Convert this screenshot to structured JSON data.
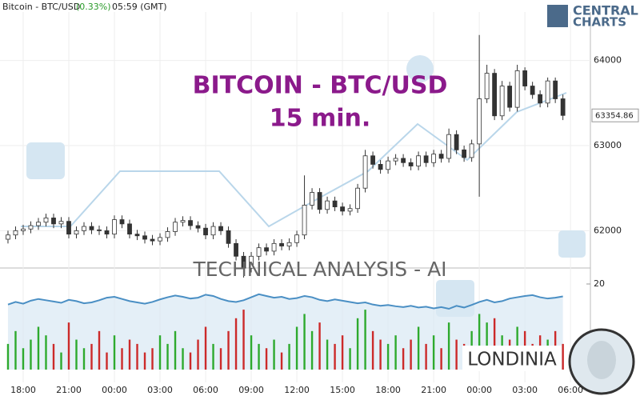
{
  "header": {
    "instrument": "Bitcoin - BTC/USD",
    "change": "(0.33%)",
    "time": "05:59 (GMT)",
    "logo_top": "CENTRAL",
    "logo_bottom": "CHARTS"
  },
  "watermark": {
    "title": "BITCOIN - BTC/USD",
    "subtitle": "15 min.",
    "banner": "TECHNICAL  ANALYSIS - AI",
    "brand": "LONDINIA"
  },
  "chart_data": [
    {
      "type": "candlestick",
      "up_color": "#ffffff",
      "down_color": "#333333",
      "wick_color": "#333333",
      "xlim": [
        -1.05,
        76.3
      ],
      "xticks": [
        {
          "value": 2,
          "label": "18:00"
        },
        {
          "value": 8,
          "label": "21:00"
        },
        {
          "value": 14,
          "label": "00:00"
        },
        {
          "value": 20,
          "label": "03:00"
        },
        {
          "value": 26,
          "label": "06:00"
        },
        {
          "value": 32,
          "label": "09:00"
        },
        {
          "value": 38,
          "label": "12:00"
        },
        {
          "value": 44,
          "label": "15:00"
        },
        {
          "value": 50,
          "label": "18:00"
        },
        {
          "value": 56,
          "label": "21:00"
        },
        {
          "value": 62,
          "label": "00:00"
        },
        {
          "value": 68,
          "label": "03:00"
        },
        {
          "value": 74,
          "label": "06:00"
        }
      ],
      "ylim": [
        61590,
        64570
      ],
      "yticks": [
        62000,
        63000,
        64000
      ],
      "grid": true,
      "last_price": 63354.86,
      "open": [
        61900,
        61950,
        62000,
        62020,
        62060,
        62100,
        62150,
        62080,
        62110,
        61960,
        62000,
        62050,
        62010,
        62000,
        61960,
        62130,
        62080,
        61960,
        61940,
        61900,
        61880,
        61920,
        61990,
        62100,
        62120,
        62060,
        62030,
        61950,
        62050,
        62000,
        61850,
        61700,
        61560,
        61700,
        61800,
        61760,
        61850,
        61820,
        61860,
        61950,
        62300,
        62450,
        62250,
        62350,
        62280,
        62230,
        62260,
        62500,
        62880,
        62780,
        62720,
        62820,
        62850,
        62800,
        62760,
        62880,
        62800,
        62900,
        62850,
        63130,
        62950,
        62860,
        63020,
        63550,
        63850,
        63350,
        63700,
        63450,
        63880,
        63700,
        63600,
        63500,
        63760,
        63550
      ],
      "high": [
        62000,
        62050,
        62070,
        62110,
        62150,
        62200,
        62200,
        62160,
        62160,
        62050,
        62100,
        62100,
        62060,
        62050,
        62180,
        62180,
        62130,
        62010,
        61990,
        61950,
        61970,
        62040,
        62150,
        62170,
        62170,
        62110,
        62080,
        62100,
        62100,
        62050,
        61900,
        61750,
        61750,
        61850,
        61850,
        61900,
        61900,
        61910,
        62000,
        62650,
        62500,
        62500,
        62400,
        62400,
        62330,
        62310,
        62550,
        62950,
        62930,
        62830,
        62870,
        62900,
        62900,
        62850,
        62930,
        62930,
        62950,
        62950,
        63200,
        63180,
        63000,
        63070,
        64300,
        63950,
        63900,
        63760,
        63750,
        63950,
        63920,
        63750,
        63650,
        63800,
        63800,
        63600
      ],
      "low": [
        61850,
        61900,
        61950,
        61970,
        62010,
        62050,
        62030,
        62030,
        61910,
        61910,
        61950,
        61960,
        61950,
        61910,
        61910,
        62030,
        61910,
        61890,
        61850,
        61830,
        61830,
        61870,
        61940,
        62050,
        62010,
        61980,
        61900,
        61900,
        61950,
        61800,
        61650,
        61450,
        61510,
        61650,
        61710,
        61710,
        61770,
        61770,
        61810,
        61900,
        62250,
        62200,
        62200,
        62230,
        62180,
        62180,
        62210,
        62450,
        62730,
        62670,
        62670,
        62770,
        62750,
        62710,
        62710,
        62750,
        62750,
        62800,
        62800,
        62900,
        62810,
        62810,
        62400,
        63500,
        63300,
        63300,
        63400,
        63400,
        63650,
        63550,
        63450,
        63450,
        63500,
        63300
      ],
      "close": [
        61950,
        62000,
        62020,
        62060,
        62100,
        62150,
        62080,
        62110,
        61960,
        62000,
        62050,
        62010,
        62000,
        61960,
        62130,
        62080,
        61960,
        61940,
        61900,
        61880,
        61920,
        61990,
        62100,
        62120,
        62060,
        62030,
        61950,
        62050,
        62000,
        61850,
        61700,
        61560,
        61700,
        61800,
        61760,
        61850,
        61820,
        61860,
        61950,
        62300,
        62450,
        62250,
        62350,
        62280,
        62230,
        62260,
        62500,
        62880,
        62780,
        62720,
        62820,
        62850,
        62800,
        62760,
        62880,
        62800,
        62900,
        62850,
        63130,
        62950,
        62860,
        63020,
        63550,
        63850,
        63350,
        63700,
        63450,
        63880,
        63700,
        63600,
        63500,
        63760,
        63550,
        63354.86
      ]
    },
    {
      "type": "volume",
      "up_color": "#2eaa2e",
      "down_color": "#cc2a2a",
      "line_color": "#4a8fc4",
      "ylim": [
        0,
        22.8
      ],
      "yticks": [
        20
      ],
      "values": [
        6,
        9,
        5,
        7,
        10,
        8,
        6,
        4,
        11,
        7,
        5,
        6,
        9,
        4,
        8,
        5,
        7,
        6,
        4,
        5,
        8,
        6,
        9,
        5,
        4,
        7,
        10,
        6,
        5,
        9,
        12,
        14,
        8,
        6,
        5,
        7,
        4,
        6,
        10,
        13,
        9,
        11,
        7,
        6,
        8,
        5,
        12,
        14,
        9,
        7,
        6,
        8,
        5,
        7,
        10,
        6,
        8,
        5,
        11,
        7,
        6,
        9,
        13,
        11,
        12,
        8,
        7,
        10,
        9,
        6,
        8,
        7,
        9,
        6
      ],
      "indicator": [
        15.2,
        15.8,
        15.4,
        16.1,
        16.5,
        16.2,
        15.9,
        15.6,
        16.3,
        16.0,
        15.5,
        15.7,
        16.2,
        16.8,
        17.0,
        16.5,
        16.0,
        15.7,
        15.4,
        15.8,
        16.4,
        16.9,
        17.3,
        17.0,
        16.6,
        16.8,
        17.5,
        17.2,
        16.5,
        16.0,
        15.8,
        16.2,
        16.9,
        17.6,
        17.2,
        16.8,
        17.0,
        16.5,
        16.7,
        17.2,
        16.9,
        16.3,
        16.0,
        16.4,
        16.1,
        15.8,
        15.5,
        15.7,
        15.2,
        14.9,
        15.1,
        14.8,
        14.6,
        14.9,
        14.5,
        14.7,
        14.3,
        14.6,
        14.2,
        14.9,
        14.5,
        15.1,
        15.8,
        16.3,
        15.7,
        16.0,
        16.6,
        16.9,
        17.2,
        17.4,
        16.9,
        16.6,
        16.8,
        17.1
      ]
    }
  ]
}
